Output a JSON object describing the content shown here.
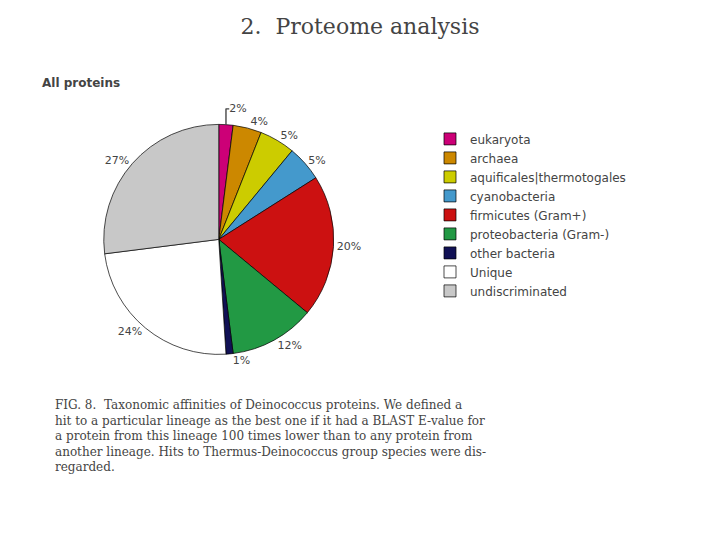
{
  "chart_data": {
    "type": "pie",
    "title": "2.  Proteome analysis",
    "subtitle": "All proteins",
    "categories": [
      "eukaryota",
      "archaea",
      "aquificales|thermotogales",
      "cyanobacteria",
      "firmicutes (Gram+)",
      "proteobacteria (Gram-)",
      "other bacteria",
      "Unique",
      "undiscriminated"
    ],
    "values": [
      2,
      4,
      5,
      5,
      20,
      12,
      1,
      24,
      27
    ],
    "value_labels": [
      "2%",
      "4%",
      "5%",
      "5%",
      "20%",
      "12%",
      "1%",
      "24%",
      "27%"
    ],
    "colors": [
      "#cc0077",
      "#cc8800",
      "#cccc00",
      "#4499cc",
      "#cc1111",
      "#229944",
      "#111155",
      "#ffffff",
      "#c8c8c8"
    ],
    "data_labels": true,
    "legend": "right",
    "annotations": [
      "FIG. 8.  Taxonomic affinities of Deinococcus proteins. We defined a\nhit to a particular lineage as the best one if it had a BLAST E-value for\na protein from this lineage 100 times lower than to any protein from\nanother lineage. Hits to Thermus-Deinococcus group species were dis-\nregarded."
    ]
  }
}
